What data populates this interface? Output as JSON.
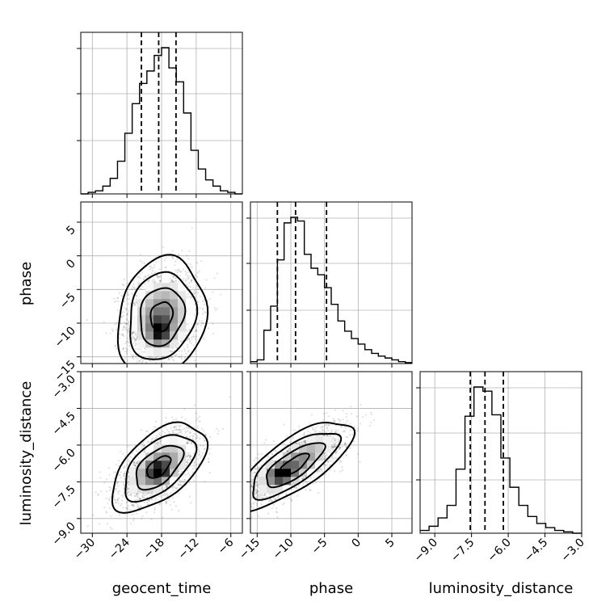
{
  "chart_data": {
    "type": "corner",
    "parameters": [
      "geocent_time",
      "phase",
      "luminosity_distance"
    ],
    "axis_labels": {
      "geocent_time": "geocent_time",
      "phase": "phase",
      "luminosity_distance": "luminosity_distance"
    },
    "ranges": {
      "geocent_time": [
        -32,
        -4
      ],
      "phase": [
        -16,
        8
      ],
      "luminosity_distance": [
        -9.6,
        -3.0
      ]
    },
    "tick_values": {
      "geocent_time": [
        -30,
        -24,
        -18,
        -12,
        -6
      ],
      "phase": [
        -15,
        -10,
        -5,
        0,
        5
      ],
      "luminosity_distance": [
        -9.0,
        -7.5,
        -6.0,
        -4.5,
        -3.0
      ]
    },
    "tick_labels": {
      "geocent_time": [
        "−30",
        "−24",
        "−18",
        "−12",
        "−6"
      ],
      "phase": [
        "−15",
        "−10",
        "−5",
        "0",
        "5"
      ],
      "luminosity_distance": [
        "−9.0",
        "−7.5",
        "−6.0",
        "−4.5",
        "−3.0"
      ]
    },
    "quantiles": {
      "geocent_time": [
        -21.5,
        -18.5,
        -15.5
      ],
      "phase": [
        -12.0,
        -9.3,
        -4.7
      ],
      "luminosity_distance": [
        -7.55,
        -6.95,
        -6.2
      ]
    },
    "histograms": {
      "geocent_time": {
        "range": [
          -32,
          -4
        ],
        "counts": [
          0,
          1,
          2,
          5,
          10,
          21,
          39,
          58,
          71,
          79,
          89,
          94,
          81,
          72,
          52,
          28,
          16,
          9,
          5,
          2,
          1,
          0
        ]
      },
      "phase": {
        "range": [
          -16,
          8
        ],
        "counts": [
          2,
          4,
          36,
          62,
          112,
          152,
          158,
          154,
          118,
          103,
          96,
          82,
          64,
          46,
          35,
          27,
          21,
          15,
          11,
          8,
          6,
          4,
          2,
          1
        ]
      },
      "luminosity_distance": {
        "range": [
          -9.6,
          -3.0
        ],
        "counts": [
          2,
          5,
          11,
          20,
          46,
          84,
          105,
          102,
          85,
          54,
          33,
          20,
          12,
          7,
          4,
          2,
          1,
          0
        ]
      }
    },
    "joint": {
      "phase_vs_geocent_time": {
        "mean": [
          -18.0,
          -9.0
        ],
        "sd": [
          3.2,
          3.6
        ],
        "rho": 0.15,
        "contour_sigma": [
          0.6,
          1.2,
          1.8,
          2.4
        ],
        "density_peak": [
          -18.3,
          -11.3
        ]
      },
      "luminosity_distance_vs_geocent_time": {
        "mean": [
          -18.5,
          -6.9
        ],
        "sd": [
          3.4,
          0.75
        ],
        "rho": 0.55,
        "contour_sigma": [
          0.6,
          1.2,
          1.8,
          2.4
        ],
        "density_peak": [
          -18.5,
          -7.1
        ]
      },
      "luminosity_distance_vs_phase": {
        "mean": [
          -9.5,
          -6.8
        ],
        "sd": [
          3.6,
          0.75
        ],
        "rho": 0.75,
        "contour_sigma": [
          0.6,
          1.2,
          1.8,
          2.4
        ],
        "density_peak": [
          -11.5,
          -7.2
        ]
      }
    }
  }
}
